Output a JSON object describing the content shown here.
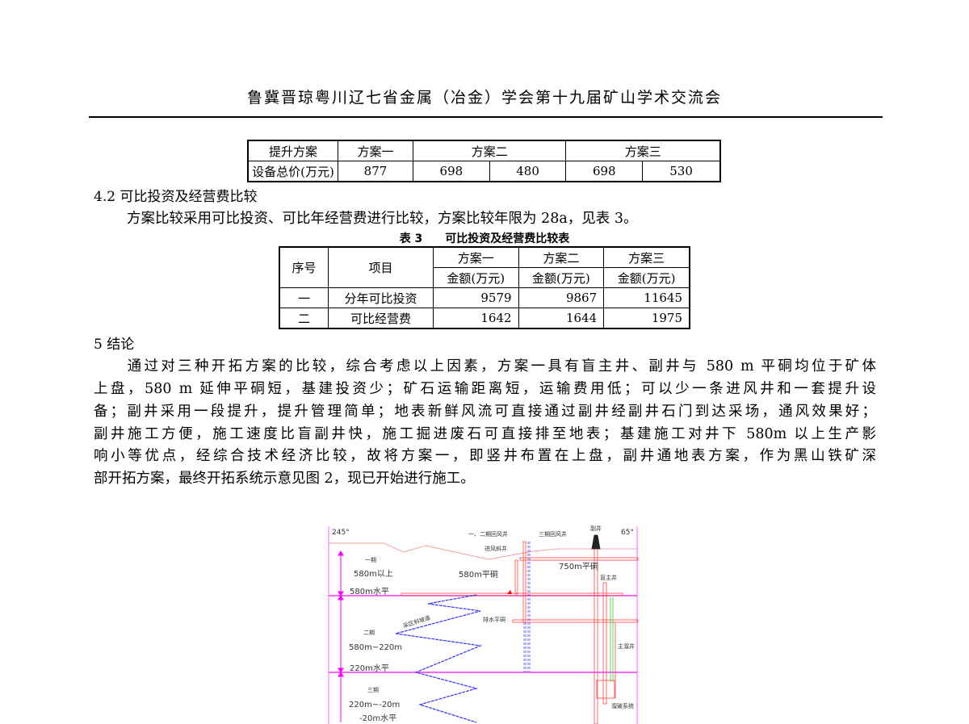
{
  "header": "鲁冀晋琼粤川辽七省金属（冶金）学会第十九届矿山学术交流会",
  "table2": {
    "row1": [
      "提升方案",
      "方案一",
      "方案二",
      "方案三"
    ],
    "row2": [
      "设备总价(万元)",
      "877",
      "698",
      "480",
      "698",
      "530"
    ]
  },
  "section_4_2": "4.2 可比投资及经营费比较",
  "para1": "方案比较采用可比投资、可比年经营费进行比较，方案比较年限为 28a，见表 3。",
  "table3": {
    "caption": "表 3　　可比投资及经营费比较表",
    "headers": [
      "序号",
      "项目",
      "方案一",
      "方案二",
      "方案三"
    ],
    "unit": "金额(万元)",
    "rows": [
      [
        "一",
        "分年可比投资",
        "9579",
        "9867",
        "11645"
      ],
      [
        "二",
        "可比经营费",
        "1642",
        "1644",
        "1975"
      ]
    ]
  },
  "section_5": "5  结论",
  "para2_lines": [
    "　　通过对三种开拓方案的比较，综合考虑以上因素，方案一具有盲主井、副井与 580 m 平硐均位于矿体",
    "上盘，580 m 延伸平硐短，基建投资少；矿石运输距离短，运输费用低；可以少一条进风井和一套提升设",
    "备；副井采用一段提升，提升管理简单；地表新鲜风流可直接通过副井经副井石门到达采场，通风效果好；",
    "副井施工方便，施工速度比盲副井快，施工掘进废石可直接排至地表；基建施工对井下 580m 以上生产影",
    "响小等优点，经综合技术经济比较，故将方案一，即竖井布置在上盘，副井通地表方案，作为黑山铁矿深",
    "部开拓方案，最终开拓系统示意见图 2，现已开始进行施工。"
  ],
  "figure": {
    "angle_left": "245°",
    "angle_right": "65°",
    "stages": [
      {
        "name": "一期",
        "range": "580m以上",
        "level": "580m水平"
      },
      {
        "name": "二期",
        "range": "580m~220m",
        "level": "220m水平"
      },
      {
        "name": "三期",
        "range": "220m~-20m",
        "level": "-20m水平"
      }
    ],
    "labels": {
      "return_shaft_12": "一、二期回风井",
      "return_shaft_3": "三期回风井",
      "aux_shaft": "副井",
      "intake_incline": "进风斜井",
      "adit_750": "750m平硐",
      "blind_main_shaft": "盲主井",
      "adit_580": "580m平硐",
      "drain_adit": "排水平硐",
      "ramp": "采区斜坡道",
      "ore_pass": "主溜井",
      "crushing": "溜破系统"
    },
    "colors": {
      "level": "#ff33ff",
      "workings": "#ff3333",
      "ramp": "#3333ff",
      "ore_pass": "#33cc33"
    }
  }
}
